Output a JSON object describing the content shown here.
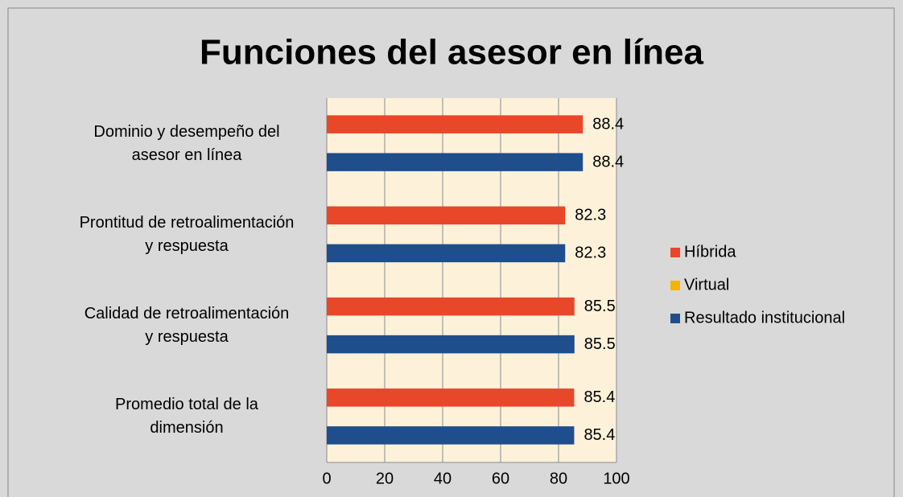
{
  "chart_data": {
    "type": "bar",
    "orientation": "horizontal",
    "title": "Funciones del asesor en línea",
    "categories": [
      "Dominio y desempeño del\nasesor en línea",
      "Prontitud de retroalimentación\ny respuesta",
      "Calidad de retroalimentación\ny respuesta",
      "Promedio total de la\ndimensión"
    ],
    "series": [
      {
        "name": "Híbrida",
        "color": "#e8472a",
        "values": [
          88.4,
          82.3,
          85.5,
          85.4
        ]
      },
      {
        "name": "Virtual",
        "color": "#f5b400",
        "values": [
          null,
          null,
          null,
          null
        ]
      },
      {
        "name": "Resultado institucional",
        "color": "#1f4e8d",
        "values": [
          88.4,
          82.3,
          85.5,
          85.4
        ]
      }
    ],
    "xlim": [
      0,
      100
    ],
    "xticks": [
      0,
      20,
      40,
      60,
      80,
      100
    ],
    "grid": true,
    "legend": "right"
  }
}
